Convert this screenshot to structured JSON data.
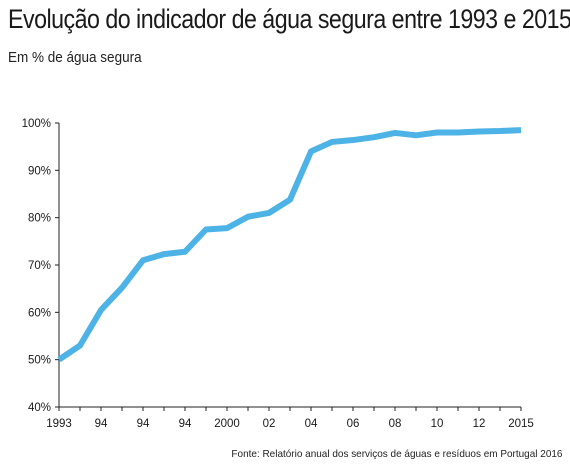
{
  "chart_data": {
    "type": "line",
    "title": "Evolução do indicador de água segura entre 1993 e 2015",
    "subtitle": "Em % de água segura",
    "source": "Fonte: Relatório anual dos serviços de águas e resíduos em Portugal 2016",
    "xlabel": "",
    "ylabel": "",
    "x": [
      1993,
      1994,
      1995,
      1996,
      1997,
      1998,
      1999,
      2000,
      2001,
      2002,
      2003,
      2004,
      2005,
      2006,
      2007,
      2008,
      2009,
      2010,
      2011,
      2012,
      2013,
      2014,
      2015
    ],
    "x_tick_labels": [
      "1993",
      "94",
      "94",
      "94",
      "2000",
      "02",
      "04",
      "06",
      "08",
      "10",
      "12",
      "2015"
    ],
    "y_tick_labels": [
      "100%",
      "90%",
      "80%",
      "70%",
      "60%",
      "50%",
      "40%"
    ],
    "ylim": [
      40,
      100
    ],
    "series": [
      {
        "values": [
          50,
          53,
          60.5,
          65.2,
          71,
          72.3,
          72.8,
          77.5,
          77.8,
          80.2,
          81,
          83.8,
          94,
          96,
          96.4,
          97,
          97.9,
          97.4,
          98,
          98,
          98.2,
          98.3,
          98.5
        ]
      }
    ],
    "line_color": "#4db3e6",
    "grid": false
  }
}
